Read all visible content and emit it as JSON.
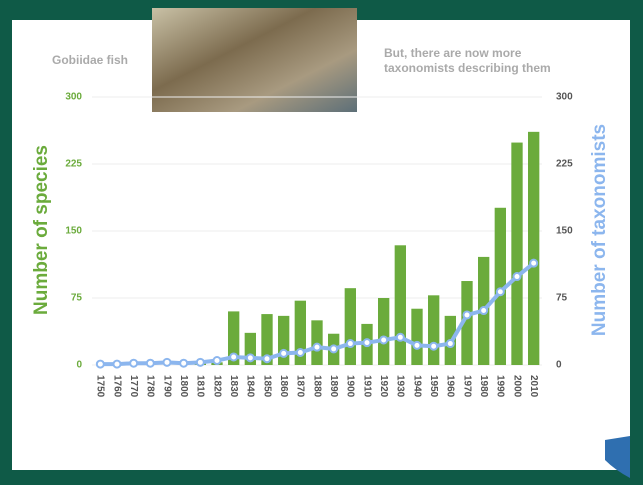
{
  "chart_data": {
    "type": "bar_line",
    "title": "Gobiidae fish",
    "annotation": "But, there are now more taxonomists describing them",
    "y_label": "Number of species",
    "y2_label": "Number of taxonomists",
    "categories": [
      "1750",
      "1760",
      "1770",
      "1780",
      "1790",
      "1800",
      "1810",
      "1820",
      "1830",
      "1840",
      "1850",
      "1860",
      "1870",
      "1880",
      "1890",
      "1900",
      "1910",
      "1920",
      "1930",
      "1940",
      "1950",
      "1960",
      "1970",
      "1980",
      "1990",
      "2000",
      "2010"
    ],
    "series": [
      {
        "name": "Number of species",
        "type": "bar",
        "color": "#6bab3c",
        "values": [
          0,
          0,
          0,
          0,
          0,
          0,
          4,
          3,
          60,
          36,
          57,
          55,
          72,
          50,
          35,
          86,
          46,
          75,
          134,
          63,
          78,
          55,
          94,
          121,
          176,
          249,
          261
        ]
      },
      {
        "name": "Number of taxonomists",
        "type": "line",
        "axis": "y2",
        "color": "#8cb6ee",
        "values": [
          1,
          1,
          2,
          2,
          3,
          2,
          3,
          5,
          9,
          8,
          7,
          13,
          14,
          20,
          18,
          24,
          25,
          28,
          31,
          22,
          21,
          24,
          56,
          61,
          82,
          99,
          114
        ]
      }
    ],
    "ylim": [
      0,
      300
    ],
    "yticks": [
      0,
      75,
      150,
      225,
      300
    ],
    "y2lim": [
      0,
      300
    ],
    "y2ticks": [
      0,
      75,
      150,
      225,
      300
    ],
    "grid": true
  }
}
